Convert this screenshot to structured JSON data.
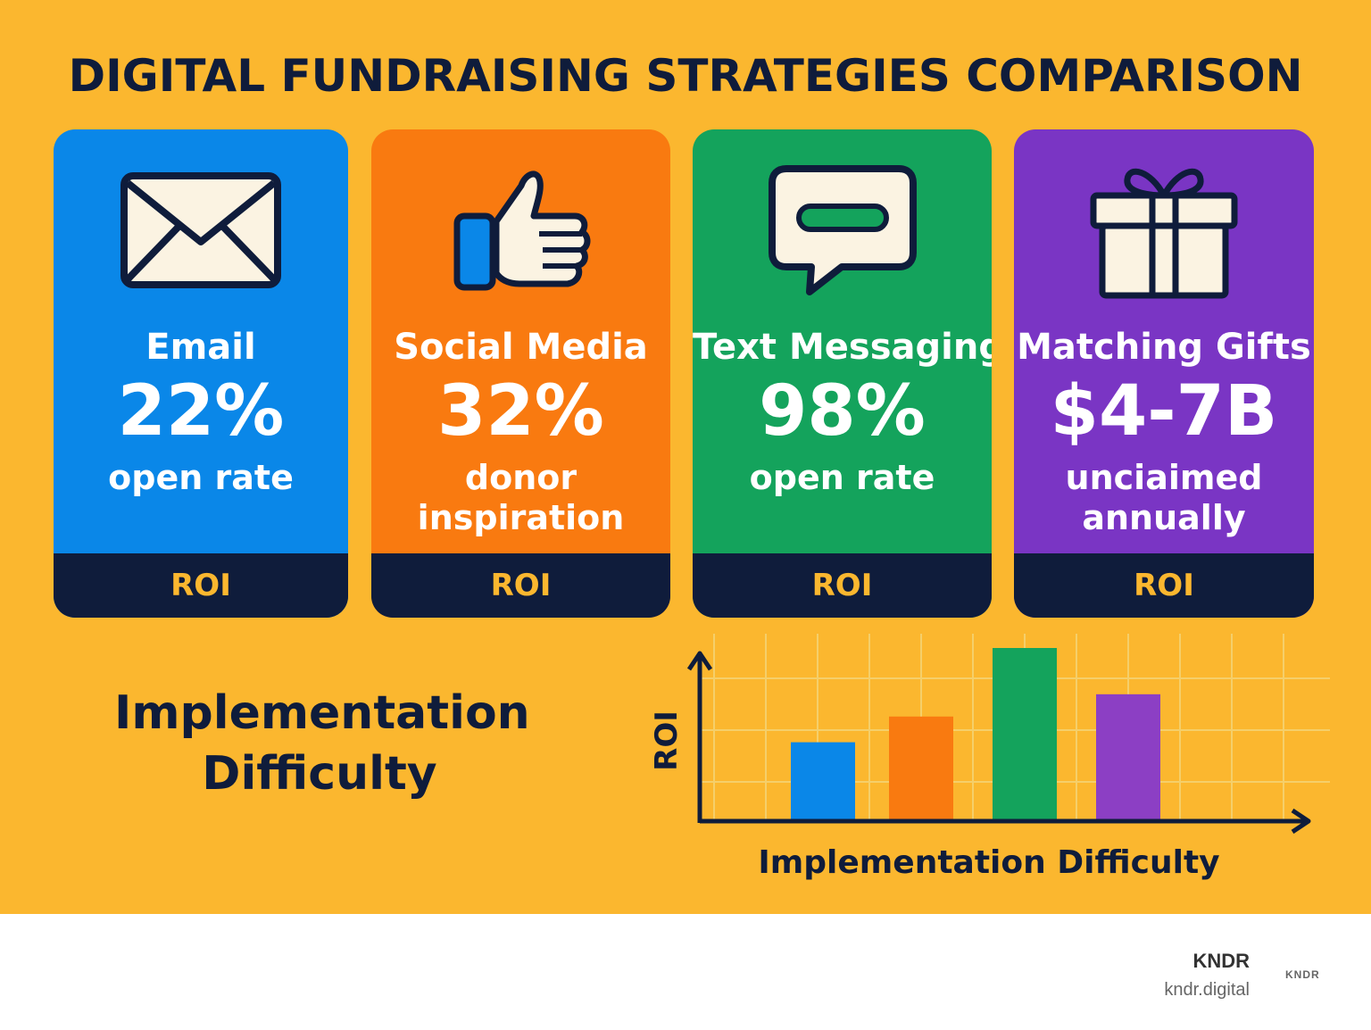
{
  "title": "DIGITAL FUNDRAISING STRATEGIES COMPARISON",
  "colors": {
    "background": "#FBB72F",
    "navy": "#0f1c3b",
    "cream": "#FBF3E2",
    "email": "#0A87E8",
    "social": "#F97A10",
    "text": "#14A35C",
    "matching": "#7A35C4"
  },
  "cards": [
    {
      "name": "Email",
      "stat": "22%",
      "desc": "open rate",
      "footer": "ROI",
      "icon": "envelope-icon"
    },
    {
      "name": "Social Media",
      "stat": "32%",
      "desc": "donor inspiration",
      "footer": "ROI",
      "icon": "thumbs-up-icon"
    },
    {
      "name": "Text Messaging",
      "stat": "98%",
      "desc": "open rate",
      "footer": "ROI",
      "icon": "chat-bubble-icon"
    },
    {
      "name": "Matching Gifts",
      "stat": "$4-7B",
      "desc": "unciaimed annually",
      "footer": "ROI",
      "icon": "gift-icon"
    }
  ],
  "implementation_label": "Implementation Difficulty",
  "chart_data": {
    "type": "bar",
    "ylabel": "ROI",
    "xlabel": "Implementation Difficulty",
    "grid": true,
    "values": [
      45,
      60,
      100,
      73
    ],
    "ylim": [
      0,
      100
    ],
    "colors": [
      "#0A87E8",
      "#F97A10",
      "#14A35C",
      "#8C3FC4"
    ]
  },
  "footer": {
    "brand": "KNDR",
    "url": "kndr.digital",
    "logo": "KNDR"
  }
}
